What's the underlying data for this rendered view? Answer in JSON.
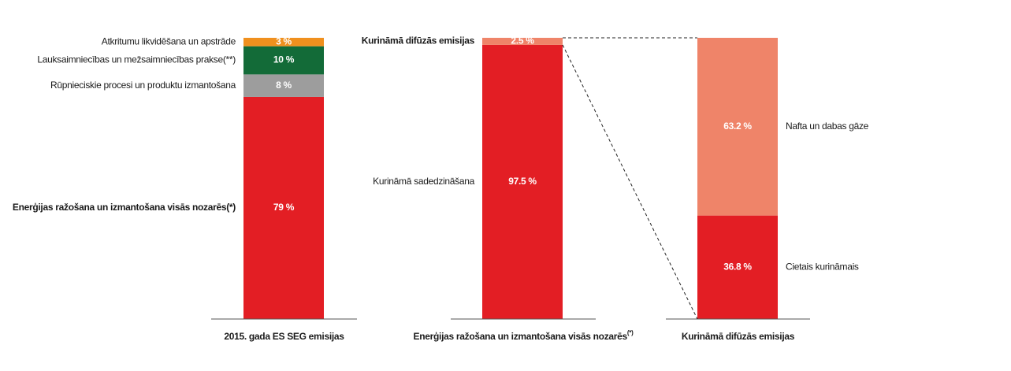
{
  "chart_data": [
    {
      "type": "bar",
      "stacked": true,
      "label_side": "left",
      "categories": [
        "2015. gada ES SEG emisijas"
      ],
      "ylim": [
        0,
        100
      ],
      "series": [
        {
          "name": "Enerģijas ražošana un izmantošana visās nozarēs(*)",
          "bold": true,
          "color": "#e31e24",
          "values": [
            79
          ],
          "value_labels": [
            "79 %"
          ]
        },
        {
          "name": "Rūpnieciskie procesi un produktu izmantošana",
          "color": "#9d9d9d",
          "values": [
            8
          ],
          "value_labels": [
            "8 %"
          ]
        },
        {
          "name": "Lauksaimniecības un mežsaimniecības prakse(**)",
          "color": "#136b38",
          "values": [
            10
          ],
          "value_labels": [
            "10 %"
          ]
        },
        {
          "name": "Atkritumu likvidēšana un apstrāde",
          "color": "#f0901e",
          "values": [
            3
          ],
          "value_labels": [
            "3 %"
          ]
        }
      ]
    },
    {
      "type": "bar",
      "stacked": true,
      "label_side": "left",
      "categories": [
        "Enerģijas ražošana un izmantošana visās nozarēs"
      ],
      "category_superscript": "(*)",
      "ylim": [
        0,
        100
      ],
      "series": [
        {
          "name": "Kurināmā sadedzināšana",
          "color": "#e31e24",
          "values": [
            97.5
          ],
          "value_labels": [
            "97.5 %"
          ]
        },
        {
          "name": "Kurināmā difūzās emisijas",
          "bold": true,
          "color": "#ef8469",
          "values": [
            2.5
          ],
          "value_labels": [
            "2.5 %"
          ]
        }
      ]
    },
    {
      "type": "bar",
      "stacked": true,
      "label_side": "right",
      "categories": [
        "Kurināmā difūzās emisijas"
      ],
      "ylim": [
        0,
        100
      ],
      "series": [
        {
          "name": "Cietais kurināmais",
          "color": "#e31e24",
          "values": [
            36.8
          ],
          "value_labels": [
            "36.8 %"
          ]
        },
        {
          "name": "Nafta un dabas gāze",
          "color": "#ef8469",
          "values": [
            63.2
          ],
          "value_labels": [
            "63.2 %"
          ]
        }
      ]
    }
  ]
}
